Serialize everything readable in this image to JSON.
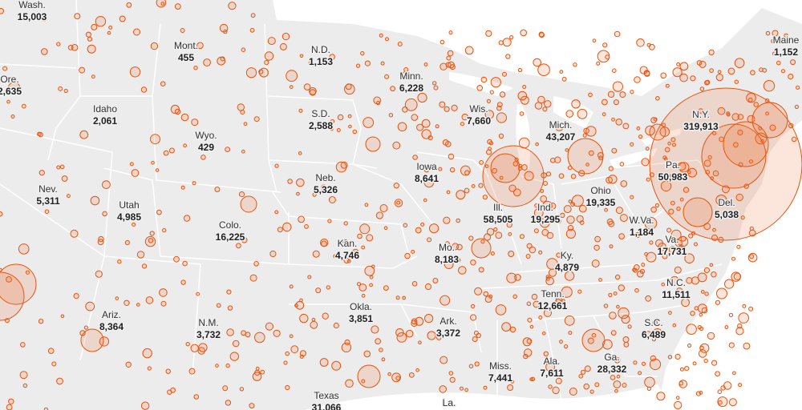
{
  "states": [
    {
      "name": "Wash.",
      "cases": "15,003"
    },
    {
      "name": "Ore.",
      "cases": "2,635"
    },
    {
      "name": "Mont.",
      "cases": "455"
    },
    {
      "name": "N.D.",
      "cases": "1,153"
    },
    {
      "name": "Minn.",
      "cases": "6,228"
    },
    {
      "name": "Maine",
      "cases": "1,152"
    },
    {
      "name": "Idaho",
      "cases": "2,061"
    },
    {
      "name": "S.D.",
      "cases": "2,588"
    },
    {
      "name": "Wis.",
      "cases": "7,660"
    },
    {
      "name": "Mich.",
      "cases": "43,207"
    },
    {
      "name": "N.Y.",
      "cases": "319,913"
    },
    {
      "name": "Wyo.",
      "cases": "429"
    },
    {
      "name": "Iowa",
      "cases": "8,641"
    },
    {
      "name": "Pa.",
      "cases": "50,983"
    },
    {
      "name": "Neb.",
      "cases": "5,326"
    },
    {
      "name": "Nev.",
      "cases": "5,311"
    },
    {
      "name": "Utah",
      "cases": "4,985"
    },
    {
      "name": "Ohio",
      "cases": "19,335"
    },
    {
      "name": "Ill.",
      "cases": "58,505"
    },
    {
      "name": "Ind.",
      "cases": "19,295"
    },
    {
      "name": "Del.",
      "cases": "5,038"
    },
    {
      "name": "Colo.",
      "cases": "16,225"
    },
    {
      "name": "W.Va.",
      "cases": "1,184"
    },
    {
      "name": "Kan.",
      "cases": "4,746"
    },
    {
      "name": "Mo.",
      "cases": "8,183"
    },
    {
      "name": "Va.",
      "cases": "17,731"
    },
    {
      "name": "Ky.",
      "cases": "4,879"
    },
    {
      "name": "N.C.",
      "cases": "11,511"
    },
    {
      "name": "Tenn.",
      "cases": "12,661"
    },
    {
      "name": "Okla.",
      "cases": "3,851"
    },
    {
      "name": "Ariz.",
      "cases": "8,364"
    },
    {
      "name": "N.M.",
      "cases": "3,732"
    },
    {
      "name": "Ark.",
      "cases": "3,372"
    },
    {
      "name": "S.C.",
      "cases": "6,489"
    },
    {
      "name": "Ala.",
      "cases": "7,611"
    },
    {
      "name": "Ga.",
      "cases": "28,332"
    },
    {
      "name": "Miss.",
      "cases": "7,441"
    },
    {
      "name": "Texas",
      "cases": "31,066"
    },
    {
      "name": "La."
    }
  ]
}
